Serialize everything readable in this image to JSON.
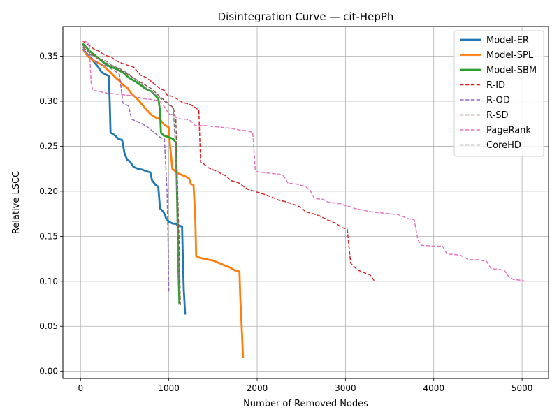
{
  "chart_data": {
    "type": "line",
    "title": "Disintegration Curve — cit-HepPh",
    "xlabel": "Number of Removed Nodes",
    "ylabel": "Relative LSCC",
    "xlim": [
      -200,
      5300
    ],
    "ylim": [
      -0.008,
      0.383
    ],
    "xticks": [
      0,
      1000,
      2000,
      3000,
      4000,
      5000
    ],
    "yticks": [
      0.0,
      0.05,
      0.1,
      0.15,
      0.2,
      0.25,
      0.3,
      0.35
    ],
    "grid": true,
    "legend_position": "top-right",
    "series": [
      {
        "name": "Model-ER",
        "color": "#1f77b4",
        "style": "solid",
        "points": [
          [
            25,
            0.358
          ],
          [
            80,
            0.352
          ],
          [
            150,
            0.344
          ],
          [
            200,
            0.338
          ],
          [
            240,
            0.332
          ],
          [
            280,
            0.33
          ],
          [
            320,
            0.328
          ],
          [
            330,
            0.3
          ],
          [
            340,
            0.265
          ],
          [
            360,
            0.264
          ],
          [
            390,
            0.262
          ],
          [
            430,
            0.258
          ],
          [
            470,
            0.257
          ],
          [
            500,
            0.241
          ],
          [
            530,
            0.235
          ],
          [
            560,
            0.233
          ],
          [
            580,
            0.23
          ],
          [
            600,
            0.227
          ],
          [
            650,
            0.225
          ],
          [
            700,
            0.224
          ],
          [
            750,
            0.222
          ],
          [
            790,
            0.221
          ],
          [
            810,
            0.212
          ],
          [
            850,
            0.207
          ],
          [
            880,
            0.205
          ],
          [
            900,
            0.181
          ],
          [
            940,
            0.177
          ],
          [
            970,
            0.17
          ],
          [
            1000,
            0.166
          ],
          [
            1050,
            0.164
          ],
          [
            1080,
            0.164
          ],
          [
            1100,
            0.162
          ],
          [
            1150,
            0.161
          ],
          [
            1160,
            0.12
          ],
          [
            1170,
            0.09
          ],
          [
            1185,
            0.063
          ]
        ]
      },
      {
        "name": "Model-SPL",
        "color": "#ff7f0e",
        "style": "solid",
        "points": [
          [
            25,
            0.358
          ],
          [
            80,
            0.35
          ],
          [
            150,
            0.345
          ],
          [
            250,
            0.34
          ],
          [
            330,
            0.333
          ],
          [
            400,
            0.326
          ],
          [
            450,
            0.322
          ],
          [
            480,
            0.318
          ],
          [
            530,
            0.315
          ],
          [
            580,
            0.308
          ],
          [
            640,
            0.303
          ],
          [
            700,
            0.296
          ],
          [
            750,
            0.29
          ],
          [
            800,
            0.285
          ],
          [
            850,
            0.282
          ],
          [
            900,
            0.28
          ],
          [
            930,
            0.276
          ],
          [
            960,
            0.273
          ],
          [
            1000,
            0.271
          ],
          [
            1010,
            0.255
          ],
          [
            1040,
            0.225
          ],
          [
            1100,
            0.22
          ],
          [
            1150,
            0.218
          ],
          [
            1200,
            0.216
          ],
          [
            1230,
            0.214
          ],
          [
            1250,
            0.208
          ],
          [
            1280,
            0.207
          ],
          [
            1300,
            0.17
          ],
          [
            1310,
            0.128
          ],
          [
            1350,
            0.126
          ],
          [
            1400,
            0.125
          ],
          [
            1500,
            0.123
          ],
          [
            1600,
            0.119
          ],
          [
            1650,
            0.117
          ],
          [
            1700,
            0.115
          ],
          [
            1750,
            0.112
          ],
          [
            1800,
            0.111
          ],
          [
            1810,
            0.08
          ],
          [
            1830,
            0.04
          ],
          [
            1840,
            0.015
          ]
        ]
      },
      {
        "name": "Model-SBM",
        "color": "#2ca02c",
        "style": "solid",
        "points": [
          [
            25,
            0.364
          ],
          [
            100,
            0.356
          ],
          [
            200,
            0.348
          ],
          [
            300,
            0.34
          ],
          [
            400,
            0.336
          ],
          [
            480,
            0.332
          ],
          [
            550,
            0.326
          ],
          [
            620,
            0.322
          ],
          [
            680,
            0.318
          ],
          [
            730,
            0.314
          ],
          [
            800,
            0.311
          ],
          [
            850,
            0.306
          ],
          [
            880,
            0.303
          ],
          [
            900,
            0.29
          ],
          [
            910,
            0.265
          ],
          [
            940,
            0.262
          ],
          [
            1000,
            0.26
          ],
          [
            1050,
            0.258
          ],
          [
            1080,
            0.254
          ],
          [
            1090,
            0.21
          ],
          [
            1100,
            0.16
          ],
          [
            1110,
            0.11
          ],
          [
            1120,
            0.074
          ]
        ]
      },
      {
        "name": "R-ID",
        "color": "#d62728",
        "style": "dashed",
        "points": [
          [
            25,
            0.367
          ],
          [
            100,
            0.362
          ],
          [
            150,
            0.358
          ],
          [
            200,
            0.356
          ],
          [
            280,
            0.351
          ],
          [
            350,
            0.349
          ],
          [
            400,
            0.345
          ],
          [
            500,
            0.341
          ],
          [
            600,
            0.338
          ],
          [
            680,
            0.329
          ],
          [
            750,
            0.326
          ],
          [
            800,
            0.322
          ],
          [
            850,
            0.318
          ],
          [
            900,
            0.314
          ],
          [
            950,
            0.312
          ],
          [
            980,
            0.307
          ],
          [
            1050,
            0.305
          ],
          [
            1100,
            0.302
          ],
          [
            1150,
            0.299
          ],
          [
            1250,
            0.296
          ],
          [
            1300,
            0.293
          ],
          [
            1340,
            0.29
          ],
          [
            1360,
            0.232
          ],
          [
            1400,
            0.23
          ],
          [
            1450,
            0.226
          ],
          [
            1500,
            0.224
          ],
          [
            1550,
            0.222
          ],
          [
            1600,
            0.219
          ],
          [
            1650,
            0.217
          ],
          [
            1700,
            0.212
          ],
          [
            1800,
            0.209
          ],
          [
            1850,
            0.205
          ],
          [
            1900,
            0.202
          ],
          [
            2000,
            0.199
          ],
          [
            2100,
            0.196
          ],
          [
            2200,
            0.192
          ],
          [
            2250,
            0.19
          ],
          [
            2300,
            0.189
          ],
          [
            2400,
            0.186
          ],
          [
            2500,
            0.182
          ],
          [
            2550,
            0.177
          ],
          [
            2600,
            0.176
          ],
          [
            2700,
            0.173
          ],
          [
            2800,
            0.168
          ],
          [
            2900,
            0.164
          ],
          [
            2950,
            0.16
          ],
          [
            3020,
            0.158
          ],
          [
            3060,
            0.12
          ],
          [
            3100,
            0.116
          ],
          [
            3150,
            0.112
          ],
          [
            3200,
            0.11
          ],
          [
            3280,
            0.107
          ],
          [
            3330,
            0.1
          ]
        ]
      },
      {
        "name": "R-OD",
        "color": "#9467bd",
        "style": "dashed",
        "points": [
          [
            25,
            0.358
          ],
          [
            80,
            0.352
          ],
          [
            150,
            0.346
          ],
          [
            200,
            0.342
          ],
          [
            280,
            0.34
          ],
          [
            350,
            0.336
          ],
          [
            400,
            0.333
          ],
          [
            440,
            0.33
          ],
          [
            480,
            0.298
          ],
          [
            540,
            0.295
          ],
          [
            580,
            0.28
          ],
          [
            650,
            0.277
          ],
          [
            700,
            0.275
          ],
          [
            750,
            0.272
          ],
          [
            800,
            0.268
          ],
          [
            850,
            0.264
          ],
          [
            900,
            0.26
          ],
          [
            950,
            0.258
          ],
          [
            980,
            0.2
          ],
          [
            990,
            0.15
          ],
          [
            1000,
            0.088
          ]
        ]
      },
      {
        "name": "R-SD",
        "color": "#8c564b",
        "style": "dashed",
        "points": [
          [
            25,
            0.36
          ],
          [
            100,
            0.354
          ],
          [
            200,
            0.347
          ],
          [
            300,
            0.342
          ],
          [
            400,
            0.338
          ],
          [
            500,
            0.332
          ],
          [
            600,
            0.326
          ],
          [
            700,
            0.32
          ],
          [
            800,
            0.314
          ],
          [
            900,
            0.305
          ],
          [
            1000,
            0.297
          ],
          [
            1050,
            0.293
          ],
          [
            1080,
            0.28
          ],
          [
            1100,
            0.2
          ],
          [
            1120,
            0.13
          ],
          [
            1130,
            0.072
          ]
        ]
      },
      {
        "name": "PageRank",
        "color": "#e377c2",
        "style": "dashed",
        "points": [
          [
            25,
            0.367
          ],
          [
            80,
            0.366
          ],
          [
            100,
            0.36
          ],
          [
            120,
            0.32
          ],
          [
            140,
            0.312
          ],
          [
            200,
            0.311
          ],
          [
            250,
            0.31
          ],
          [
            300,
            0.309
          ],
          [
            400,
            0.308
          ],
          [
            500,
            0.307
          ],
          [
            600,
            0.306
          ],
          [
            700,
            0.303
          ],
          [
            800,
            0.302
          ],
          [
            900,
            0.3
          ],
          [
            950,
            0.294
          ],
          [
            1000,
            0.286
          ],
          [
            1050,
            0.285
          ],
          [
            1100,
            0.281
          ],
          [
            1150,
            0.28
          ],
          [
            1200,
            0.28
          ],
          [
            1250,
            0.278
          ],
          [
            1300,
            0.273
          ],
          [
            1400,
            0.273
          ],
          [
            1500,
            0.272
          ],
          [
            1600,
            0.271
          ],
          [
            1700,
            0.27
          ],
          [
            1800,
            0.268
          ],
          [
            1900,
            0.267
          ],
          [
            1950,
            0.265
          ],
          [
            1980,
            0.222
          ],
          [
            2050,
            0.221
          ],
          [
            2150,
            0.22
          ],
          [
            2250,
            0.219
          ],
          [
            2300,
            0.217
          ],
          [
            2350,
            0.209
          ],
          [
            2450,
            0.208
          ],
          [
            2550,
            0.205
          ],
          [
            2600,
            0.201
          ],
          [
            2650,
            0.192
          ],
          [
            2750,
            0.191
          ],
          [
            2800,
            0.188
          ],
          [
            2950,
            0.186
          ],
          [
            3000,
            0.184
          ],
          [
            3050,
            0.183
          ],
          [
            3100,
            0.181
          ],
          [
            3200,
            0.179
          ],
          [
            3300,
            0.177
          ],
          [
            3400,
            0.176
          ],
          [
            3500,
            0.175
          ],
          [
            3600,
            0.174
          ],
          [
            3700,
            0.17
          ],
          [
            3780,
            0.168
          ],
          [
            3820,
            0.146
          ],
          [
            3860,
            0.14
          ],
          [
            4000,
            0.139
          ],
          [
            4100,
            0.139
          ],
          [
            4150,
            0.13
          ],
          [
            4200,
            0.13
          ],
          [
            4300,
            0.129
          ],
          [
            4400,
            0.124
          ],
          [
            4500,
            0.124
          ],
          [
            4600,
            0.122
          ],
          [
            4650,
            0.114
          ],
          [
            4750,
            0.113
          ],
          [
            4800,
            0.112
          ],
          [
            4850,
            0.105
          ],
          [
            4900,
            0.102
          ],
          [
            5000,
            0.101
          ],
          [
            5030,
            0.1
          ]
        ]
      },
      {
        "name": "CoreHD",
        "color": "#7f7f7f",
        "style": "dashed",
        "points": [
          [
            25,
            0.362
          ],
          [
            80,
            0.357
          ],
          [
            100,
            0.352
          ],
          [
            200,
            0.348
          ],
          [
            300,
            0.344
          ],
          [
            350,
            0.34
          ],
          [
            450,
            0.336
          ],
          [
            550,
            0.33
          ],
          [
            650,
            0.322
          ],
          [
            750,
            0.314
          ],
          [
            850,
            0.307
          ],
          [
            950,
            0.3
          ],
          [
            1000,
            0.296
          ],
          [
            1050,
            0.292
          ],
          [
            1070,
            0.26
          ],
          [
            1090,
            0.2
          ],
          [
            1100,
            0.15
          ],
          [
            1110,
            0.11
          ],
          [
            1120,
            0.086
          ]
        ]
      }
    ]
  }
}
